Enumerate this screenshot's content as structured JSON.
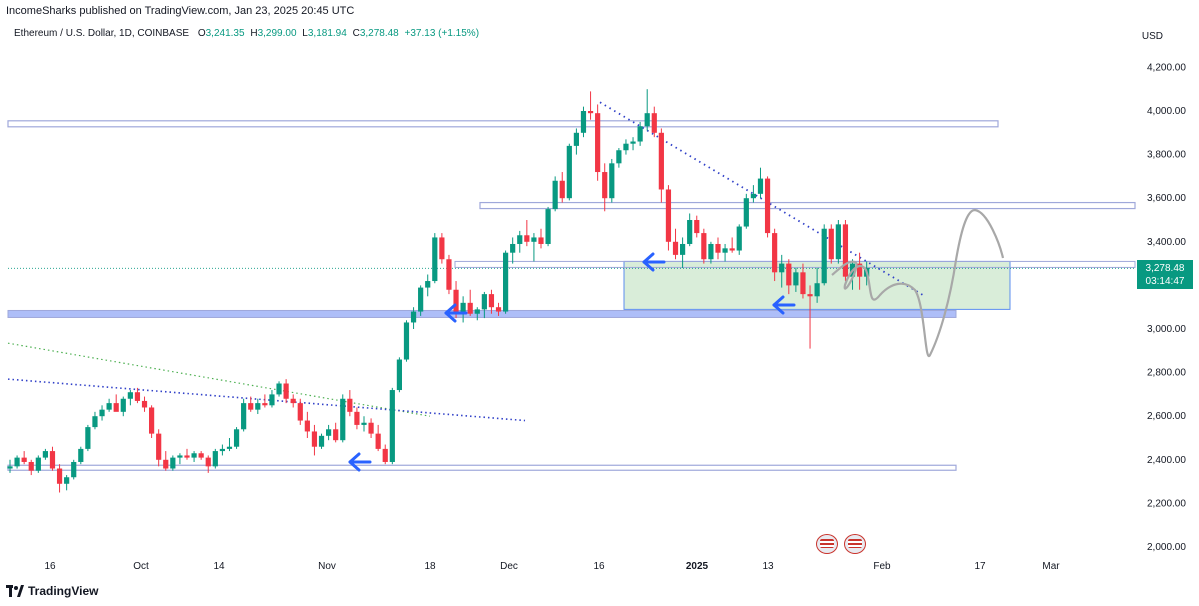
{
  "header": {
    "published_line": "IncomeSharks published on TradingView.com, Jan 23, 2025 20:45 UTC"
  },
  "legend": {
    "symbol": "Ethereum / U.S. Dollar, 1D, COINBASE",
    "o_label": "O",
    "o_value": "3,241.35",
    "h_label": "H",
    "h_value": "3,299.00",
    "l_label": "L",
    "l_value": "3,181.94",
    "c_label": "C",
    "c_value": "3,278.48",
    "change": "+37.13 (+1.15%)"
  },
  "axis": {
    "currency": "USD",
    "y_ticks": [
      "4,200.00",
      "4,000.00",
      "3,800.00",
      "3,600.00",
      "3,400.00",
      "3,000.00",
      "2,800.00",
      "2,600.00",
      "2,400.00",
      "2,200.00",
      "2,000.00"
    ],
    "x_ticks": [
      "16",
      "Oct",
      "14",
      "Nov",
      "18",
      "Dec",
      "16",
      "2025",
      "13",
      "Feb",
      "17",
      "Mar"
    ]
  },
  "price_tag": {
    "price": "3,278.48",
    "countdown": "03:14:47",
    "color": "#089981"
  },
  "colors": {
    "up": "#089981",
    "down": "#f23645",
    "zone": "#b2d8b2",
    "line": "#3b5bdb",
    "arrow": "#2962ff"
  },
  "chart_data": {
    "type": "candlestick",
    "title": "Ethereum / U.S. Dollar, 1D, COINBASE",
    "ylabel": "USD",
    "ylim": [
      2000,
      4200
    ],
    "price": 3278.48,
    "horizontal_levels": [
      3950,
      3570,
      3280,
      3075,
      2370
    ],
    "support_zone": [
      3090,
      3310
    ]
  },
  "footer": {
    "brand": "TradingView"
  },
  "icons": {
    "tv_logo": "tradingview-logo-icon",
    "flag": "us-flag-icon"
  }
}
